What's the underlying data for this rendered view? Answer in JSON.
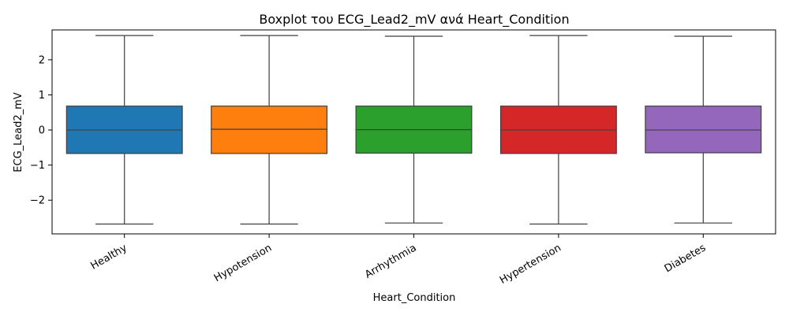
{
  "chart_data": {
    "type": "boxplot",
    "title": "Boxplot του ECG_Lead2_mV ανά Heart_Condition",
    "xlabel": "Heart_Condition",
    "ylabel": "ECG_Lead2_mV",
    "ylim": [
      -2.96,
      2.85
    ],
    "yticks": [
      -2,
      -1,
      0,
      1,
      2
    ],
    "ytick_labels": [
      "−2",
      "−1",
      "0",
      "1",
      "2"
    ],
    "grid": false,
    "legend": "none",
    "categories": [
      "Healthy",
      "Hypotension",
      "Arrhythmia",
      "Hypertension",
      "Diabetes"
    ],
    "boxes": [
      {
        "category": "Healthy",
        "min": -2.68,
        "q1": -0.67,
        "median": 0.0,
        "q3": 0.68,
        "max": 2.69,
        "color": "#1f77b4"
      },
      {
        "category": "Hypotension",
        "min": -2.68,
        "q1": -0.67,
        "median": 0.02,
        "q3": 0.68,
        "max": 2.69,
        "color": "#ff7f0e"
      },
      {
        "category": "Arrhythmia",
        "min": -2.65,
        "q1": -0.66,
        "median": 0.01,
        "q3": 0.68,
        "max": 2.67,
        "color": "#2ca02c"
      },
      {
        "category": "Hypertension",
        "min": -2.68,
        "q1": -0.67,
        "median": 0.0,
        "q3": 0.68,
        "max": 2.69,
        "color": "#d62728"
      },
      {
        "category": "Diabetes",
        "min": -2.65,
        "q1": -0.65,
        "median": 0.0,
        "q3": 0.68,
        "max": 2.67,
        "color": "#9467bd"
      }
    ]
  }
}
